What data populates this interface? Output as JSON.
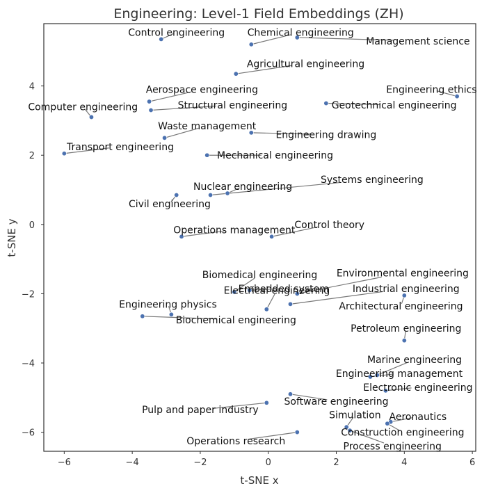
{
  "chart_data": {
    "type": "scatter",
    "title": "Engineering: Level-1 Field Embeddings (ZH)",
    "xlabel": "t-SNE x",
    "ylabel": "t-SNE y",
    "xlim": [
      -6.6,
      6.1
    ],
    "ylim": [
      -6.55,
      5.8
    ],
    "xticks": [
      -6,
      -4,
      -2,
      0,
      2,
      4,
      6
    ],
    "yticks": [
      -6,
      -4,
      -2,
      0,
      2,
      4
    ],
    "xtick_labels": [
      "−6",
      "−4",
      "−2",
      "0",
      "2",
      "4",
      "6"
    ],
    "ytick_labels": [
      "−6",
      "−4",
      "−2",
      "0",
      "2",
      "4"
    ],
    "grid": false,
    "marker_color": "#4c72b0",
    "points": [
      {
        "label": "Control engineering",
        "x": -3.15,
        "y": 5.35,
        "lx": -2.7,
        "ly": 5.55
      },
      {
        "label": "Chemical engineering",
        "x": -0.5,
        "y": 5.2,
        "lx": 0.95,
        "ly": 5.55
      },
      {
        "label": "Management science",
        "x": 0.85,
        "y": 5.4,
        "lx": 4.4,
        "ly": 5.3
      },
      {
        "label": "Agricultural engineering",
        "x": -0.95,
        "y": 4.35,
        "lx": 1.1,
        "ly": 4.65
      },
      {
        "label": "Aerospace engineering",
        "x": -3.5,
        "y": 3.55,
        "lx": -1.95,
        "ly": 3.9
      },
      {
        "label": "Engineering ethics",
        "x": 5.55,
        "y": 3.7,
        "lx": 4.8,
        "ly": 3.9
      },
      {
        "label": "Computer engineering",
        "x": -5.2,
        "y": 3.1,
        "lx": -5.45,
        "ly": 3.4
      },
      {
        "label": "Structural engineering",
        "x": -3.45,
        "y": 3.3,
        "lx": -1.05,
        "ly": 3.45
      },
      {
        "label": "Geotechnical engineering",
        "x": 1.7,
        "y": 3.5,
        "lx": 3.7,
        "ly": 3.45
      },
      {
        "label": "Waste management",
        "x": -3.05,
        "y": 2.5,
        "lx": -1.8,
        "ly": 2.85
      },
      {
        "label": "Engineering drawing",
        "x": -0.5,
        "y": 2.65,
        "lx": 1.7,
        "ly": 2.6
      },
      {
        "label": "Transport engineering",
        "x": -6.0,
        "y": 2.05,
        "lx": -4.35,
        "ly": 2.25
      },
      {
        "label": "Mechanical engineering",
        "x": -1.8,
        "y": 2.0,
        "lx": 0.2,
        "ly": 2.0
      },
      {
        "label": "Nuclear engineering",
        "x": -1.2,
        "y": 0.9,
        "lx": -0.75,
        "ly": 1.1
      },
      {
        "label": "Systems engineering",
        "x": -1.7,
        "y": 0.85,
        "lx": 3.05,
        "ly": 1.3
      },
      {
        "label": "Civil engineering",
        "x": -2.7,
        "y": 0.85,
        "lx": -2.9,
        "ly": 0.6
      },
      {
        "label": "Operations management",
        "x": -2.55,
        "y": -0.35,
        "lx": -1.0,
        "ly": -0.15
      },
      {
        "label": "Control theory",
        "x": 0.1,
        "y": -0.35,
        "lx": 1.8,
        "ly": 0.0
      },
      {
        "label": "Biomedical engineering",
        "x": -1.0,
        "y": -1.95,
        "lx": -0.25,
        "ly": -1.45
      },
      {
        "label": "Environmental engineering",
        "x": 0.85,
        "y": -2.0,
        "lx": 3.95,
        "ly": -1.4
      },
      {
        "label": "Embedded system",
        "x": -0.55,
        "y": -1.9,
        "lx": 0.45,
        "ly": -1.85
      },
      {
        "label": "Electrical engineering",
        "x": -0.05,
        "y": -2.45,
        "lx": 0.25,
        "ly": -1.9
      },
      {
        "label": "Industrial engineering",
        "x": 0.65,
        "y": -2.3,
        "lx": 4.05,
        "ly": -1.85
      },
      {
        "label": "Architectural engineering",
        "x": 4.0,
        "y": -2.05,
        "lx": 3.9,
        "ly": -2.35
      },
      {
        "label": "Engineering physics",
        "x": -2.85,
        "y": -2.6,
        "lx": -2.95,
        "ly": -2.3
      },
      {
        "label": "Biochemical engineering",
        "x": -3.7,
        "y": -2.65,
        "lx": -0.95,
        "ly": -2.75
      },
      {
        "label": "Petroleum engineering",
        "x": 4.0,
        "y": -3.35,
        "lx": 4.05,
        "ly": -3.0
      },
      {
        "label": "Marine engineering",
        "x": 3.2,
        "y": -4.35,
        "lx": 4.3,
        "ly": -3.9
      },
      {
        "label": "Engineering management",
        "x": 3.0,
        "y": -4.4,
        "lx": 3.85,
        "ly": -4.3
      },
      {
        "label": "Electronic engineering",
        "x": 3.45,
        "y": -4.8,
        "lx": 4.4,
        "ly": -4.7
      },
      {
        "label": "Software engineering",
        "x": 0.65,
        "y": -4.9,
        "lx": 2.0,
        "ly": -5.1
      },
      {
        "label": "Pulp and paper industry",
        "x": -0.05,
        "y": -5.15,
        "lx": -2.0,
        "ly": -5.35
      },
      {
        "label": "Simulation",
        "x": 2.3,
        "y": -5.85,
        "lx": 2.55,
        "ly": -5.5
      },
      {
        "label": "Aeronautics",
        "x": 3.6,
        "y": -5.7,
        "lx": 4.4,
        "ly": -5.55
      },
      {
        "label": "Construction engineering",
        "x": 3.5,
        "y": -5.75,
        "lx": 3.95,
        "ly": -6.0
      },
      {
        "label": "Operations research",
        "x": 0.85,
        "y": -6.0,
        "lx": -0.95,
        "ly": -6.25
      },
      {
        "label": "Process engineering",
        "x": 2.4,
        "y": -5.95,
        "lx": 3.65,
        "ly": -6.4
      }
    ]
  }
}
